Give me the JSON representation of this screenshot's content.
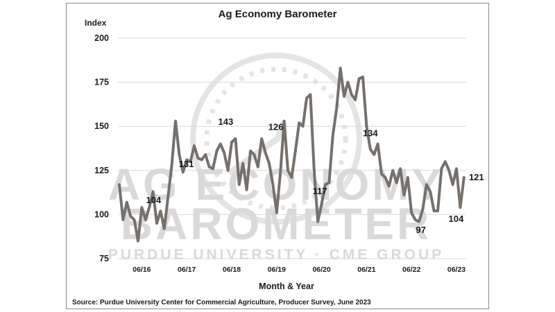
{
  "chart_data": {
    "type": "line",
    "title": "Ag Economy Barometer",
    "ylabel": "Index",
    "xlabel": "Month & Year",
    "ylim": [
      75,
      200
    ],
    "yticks": [
      75,
      100,
      125,
      150,
      175,
      200
    ],
    "xticks": [
      "06/16",
      "06/17",
      "06/18",
      "06/19",
      "06/20",
      "06/21",
      "06/22",
      "06/23"
    ],
    "grid": "horizontal",
    "line_color": "#75706b",
    "source": "Source: Purdue University Center for Commercial Agriculture, Producer Survey, June 2023",
    "watermark": {
      "line1": "AG ECONOMY",
      "line2": "BAROMETER",
      "line3": "PURDUE UNIVERSITY · CME GROUP"
    },
    "series": [
      {
        "values": [
          117,
          97,
          107,
          99,
          97,
          85,
          104,
          97,
          104,
          113,
          95,
          102,
          92,
          110,
          128,
          153,
          134,
          124,
          131,
          130,
          139,
          132,
          131,
          134,
          127,
          126,
          136,
          140,
          135,
          125,
          141,
          143,
          117,
          129,
          114,
          136,
          134,
          127,
          143,
          135,
          129,
          117,
          101,
          124,
          153,
          125,
          121,
          136,
          152,
          150,
          166,
          168,
          125,
          96,
          106,
          117,
          118,
          145,
          160,
          183,
          167,
          175,
          168,
          165,
          177,
          178,
          150,
          137,
          134,
          140,
          123,
          121,
          116,
          125,
          118,
          126,
          111,
          121,
          101,
          97,
          96,
          103,
          117,
          113,
          102,
          102,
          126,
          130,
          125,
          117,
          126,
          104,
          121
        ]
      }
    ],
    "annotations": [
      "104",
      "131",
      "143",
      "126",
      "117",
      "134",
      "97",
      "104",
      "121"
    ]
  }
}
